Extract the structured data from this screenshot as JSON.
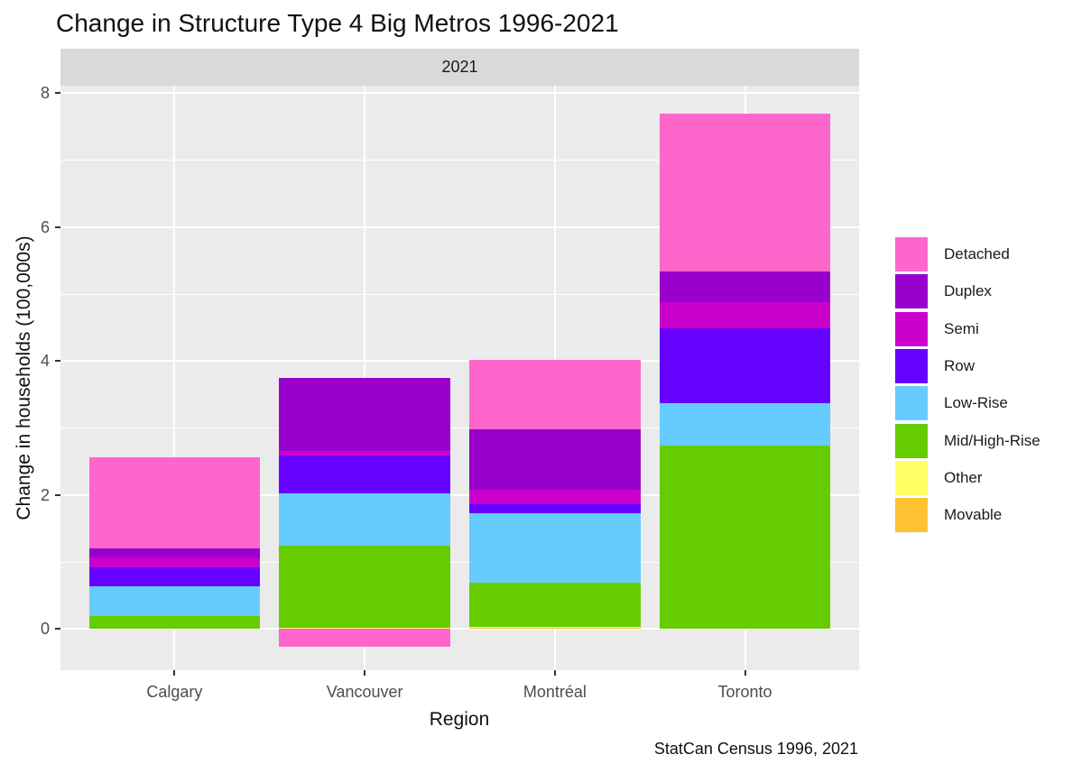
{
  "title": "Change in Structure Type 4 Big Metros 1996-2021",
  "facet_label": "2021",
  "caption": "StatCan Census 1996, 2021",
  "chart_data": {
    "type": "bar",
    "stacked": true,
    "title": "Change in Structure Type 4 Big Metros 1996-2021",
    "facet": "2021",
    "xlabel": "Region",
    "ylabel": "Change in households (100,000s)",
    "categories": [
      "Calgary",
      "Vancouver",
      "Montréal",
      "Toronto"
    ],
    "series": [
      {
        "name": "Detached",
        "color": "#FF66CC",
        "values": [
          1.36,
          -0.27,
          1.03,
          2.35
        ]
      },
      {
        "name": "Duplex",
        "color": "#9900CC",
        "values": [
          0.14,
          1.09,
          0.91,
          0.47
        ]
      },
      {
        "name": "Semi",
        "color": "#CC00CC",
        "values": [
          0.15,
          0.07,
          0.21,
          0.38
        ]
      },
      {
        "name": "Row",
        "color": "#6600FF",
        "values": [
          0.28,
          0.56,
          0.14,
          1.12
        ]
      },
      {
        "name": "Low-Rise",
        "color": "#66CCFF",
        "values": [
          0.44,
          0.79,
          1.03,
          0.64
        ]
      },
      {
        "name": "Mid/High-Rise",
        "color": "#66CC00",
        "values": [
          0.19,
          1.22,
          0.66,
          2.73
        ]
      },
      {
        "name": "Other",
        "color": "#FFFF66",
        "values": [
          0,
          0.015,
          0.015,
          0
        ]
      },
      {
        "name": "Movable",
        "color": "#FFC233",
        "values": [
          0,
          0,
          0.013,
          0
        ]
      }
    ],
    "stack_totals": [
      2.56,
      3.74,
      4.0,
      7.69
    ],
    "ylim": [
      -0.62,
      8.11
    ],
    "y_major_ticks": [
      0,
      2,
      4,
      6,
      8
    ],
    "y_minor_gridlines": [
      1,
      3,
      5,
      7
    ],
    "grid": true,
    "legend_position": "right",
    "panel_background": "#EBEBEB",
    "strip_background": "#D9D9D9",
    "gridline_color": "#FFFFFF",
    "axis_text_color": "#4D4D4D"
  },
  "legend": {
    "items": [
      {
        "label": "Detached",
        "color": "#FF66CC"
      },
      {
        "label": "Duplex",
        "color": "#9900CC"
      },
      {
        "label": "Semi",
        "color": "#CC00CC"
      },
      {
        "label": "Row",
        "color": "#6600FF"
      },
      {
        "label": "Low-Rise",
        "color": "#66CCFF"
      },
      {
        "label": "Mid/High-Rise",
        "color": "#66CC00"
      },
      {
        "label": "Other",
        "color": "#FFFF66"
      },
      {
        "label": "Movable",
        "color": "#FFC233"
      }
    ]
  }
}
